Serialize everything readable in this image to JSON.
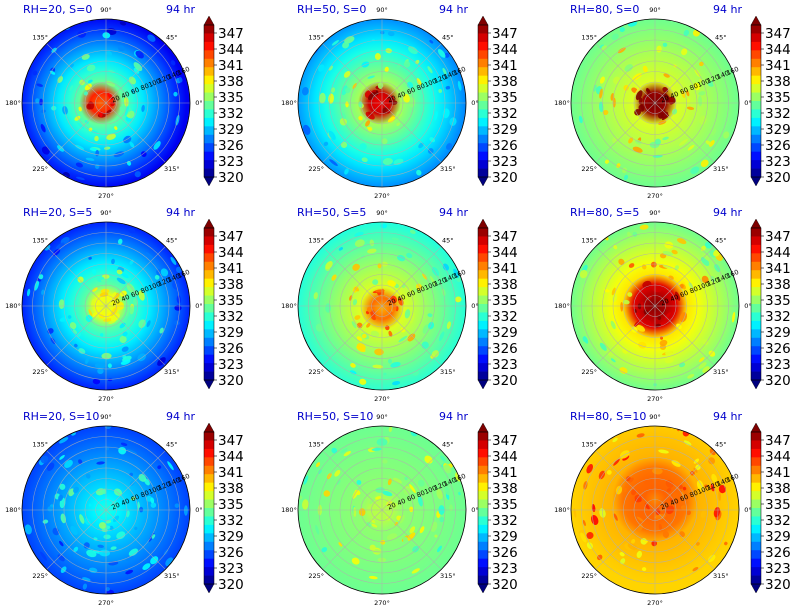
{
  "figure": {
    "time_label": "94 hr",
    "colors": [
      "#00007f",
      "#0000ff",
      "#007fff",
      "#00ffff",
      "#7fff7f",
      "#ffff00",
      "#ff7f00",
      "#ff0000",
      "#7f0000"
    ]
  },
  "chart_data": [
    {
      "type": "heatmap",
      "title": "RH=20, S=0",
      "time": "94 hr",
      "projection": "polar",
      "theta_ticks": [
        "90°",
        "135°",
        "180°",
        "225°",
        "270°",
        "315°",
        "0°",
        "45°"
      ],
      "r_ticks": [
        "20",
        "40",
        "60",
        "80",
        "100",
        "120",
        "140",
        "160"
      ],
      "colorbar_ticks": [
        "347",
        "344",
        "341",
        "338",
        "335",
        "332",
        "329",
        "326",
        "323",
        "320"
      ],
      "colorbar_range": [
        320,
        347
      ],
      "core_value": 345,
      "eye_value": 341,
      "ring_value": 334,
      "edge_value": 323,
      "core_radius": 25,
      "core_offset": [
        -10,
        0
      ]
    },
    {
      "type": "heatmap",
      "title": "RH=50, S=0",
      "time": "94 hr",
      "projection": "polar",
      "theta_ticks": [
        "90°",
        "135°",
        "180°",
        "225°",
        "270°",
        "315°",
        "0°",
        "45°"
      ],
      "r_ticks": [
        "20",
        "40",
        "60",
        "80",
        "100",
        "120",
        "140",
        "160"
      ],
      "colorbar_ticks": [
        "347",
        "344",
        "341",
        "338",
        "335",
        "332",
        "329",
        "326",
        "323",
        "320"
      ],
      "colorbar_range": [
        320,
        347
      ],
      "core_value": 346,
      "eye_value": 344,
      "ring_value": 335,
      "edge_value": 327,
      "core_radius": 32,
      "core_offset": [
        -5,
        0
      ]
    },
    {
      "type": "heatmap",
      "title": "RH=80, S=0",
      "time": "94 hr",
      "projection": "polar",
      "theta_ticks": [
        "90°",
        "135°",
        "180°",
        "225°",
        "270°",
        "315°",
        "0°",
        "45°"
      ],
      "r_ticks": [
        "20",
        "40",
        "60",
        "80",
        "100",
        "120",
        "140",
        "160"
      ],
      "colorbar_ticks": [
        "347",
        "344",
        "341",
        "338",
        "335",
        "332",
        "329",
        "326",
        "323",
        "320"
      ],
      "colorbar_range": [
        320,
        347
      ],
      "core_value": 347,
      "eye_value": 347,
      "ring_value": 336,
      "edge_value": 333,
      "core_radius": 38,
      "core_offset": [
        0,
        0
      ]
    },
    {
      "type": "heatmap",
      "title": "RH=20, S=5",
      "time": "94 hr",
      "projection": "polar",
      "theta_ticks": [
        "90°",
        "135°",
        "180°",
        "225°",
        "270°",
        "315°",
        "0°",
        "45°"
      ],
      "r_ticks": [
        "20",
        "40",
        "60",
        "80",
        "100",
        "120",
        "140",
        "160"
      ],
      "colorbar_ticks": [
        "347",
        "344",
        "341",
        "338",
        "335",
        "332",
        "329",
        "326",
        "323",
        "320"
      ],
      "colorbar_range": [
        320,
        347
      ],
      "core_value": 337,
      "eye_value": 336,
      "ring_value": 333,
      "edge_value": 324,
      "core_radius": 35,
      "core_offset": [
        0,
        0
      ]
    },
    {
      "type": "heatmap",
      "title": "RH=50, S=5",
      "time": "94 hr",
      "projection": "polar",
      "theta_ticks": [
        "90°",
        "135°",
        "180°",
        "225°",
        "270°",
        "315°",
        "0°",
        "45°"
      ],
      "r_ticks": [
        "20",
        "40",
        "60",
        "80",
        "100",
        "120",
        "140",
        "160"
      ],
      "colorbar_ticks": [
        "347",
        "344",
        "341",
        "338",
        "335",
        "332",
        "329",
        "326",
        "323",
        "320"
      ],
      "colorbar_range": [
        320,
        347
      ],
      "core_value": 341,
      "eye_value": 339,
      "ring_value": 336,
      "edge_value": 331,
      "core_radius": 40,
      "core_offset": [
        0,
        5
      ]
    },
    {
      "type": "heatmap",
      "title": "RH=80, S=5",
      "time": "94 hr",
      "projection": "polar",
      "theta_ticks": [
        "90°",
        "135°",
        "180°",
        "225°",
        "270°",
        "315°",
        "0°",
        "45°"
      ],
      "r_ticks": [
        "20",
        "40",
        "60",
        "80",
        "100",
        "120",
        "140",
        "160"
      ],
      "colorbar_ticks": [
        "347",
        "344",
        "341",
        "338",
        "335",
        "332",
        "329",
        "326",
        "323",
        "320"
      ],
      "colorbar_range": [
        320,
        347
      ],
      "core_value": 346,
      "eye_value": 347,
      "ring_value": 338,
      "edge_value": 333,
      "core_radius": 50,
      "core_offset": [
        0,
        0
      ]
    },
    {
      "type": "heatmap",
      "title": "RH=20, S=10",
      "time": "94 hr",
      "projection": "polar",
      "theta_ticks": [
        "90°",
        "135°",
        "180°",
        "225°",
        "270°",
        "315°",
        "0°",
        "45°"
      ],
      "r_ticks": [
        "20",
        "40",
        "60",
        "80",
        "100",
        "120",
        "140",
        "160"
      ],
      "colorbar_ticks": [
        "347",
        "344",
        "341",
        "338",
        "335",
        "332",
        "329",
        "326",
        "323",
        "320"
      ],
      "colorbar_range": [
        320,
        347
      ],
      "core_value": 331,
      "eye_value": 331,
      "ring_value": 330,
      "edge_value": 325,
      "core_radius": 20,
      "core_offset": [
        0,
        0
      ]
    },
    {
      "type": "heatmap",
      "title": "RH=50, S=10",
      "time": "94 hr",
      "projection": "polar",
      "theta_ticks": [
        "90°",
        "135°",
        "180°",
        "225°",
        "270°",
        "315°",
        "0°",
        "45°"
      ],
      "r_ticks": [
        "20",
        "40",
        "60",
        "80",
        "100",
        "120",
        "140",
        "160"
      ],
      "colorbar_ticks": [
        "347",
        "344",
        "341",
        "338",
        "335",
        "332",
        "329",
        "326",
        "323",
        "320"
      ],
      "colorbar_range": [
        320,
        347
      ],
      "core_value": 335,
      "eye_value": 335,
      "ring_value": 334,
      "edge_value": 333,
      "core_radius": 30,
      "core_offset": [
        0,
        0
      ]
    },
    {
      "type": "heatmap",
      "title": "RH=80, S=10",
      "time": "94 hr",
      "projection": "polar",
      "theta_ticks": [
        "90°",
        "135°",
        "180°",
        "225°",
        "270°",
        "315°",
        "0°",
        "45°"
      ],
      "r_ticks": [
        "20",
        "40",
        "60",
        "80",
        "100",
        "120",
        "140",
        "160"
      ],
      "colorbar_ticks": [
        "347",
        "344",
        "341",
        "338",
        "335",
        "332",
        "329",
        "326",
        "323",
        "320"
      ],
      "colorbar_range": [
        320,
        347
      ],
      "core_value": 341,
      "eye_value": 340,
      "ring_value": 339,
      "edge_value": 338,
      "core_radius": 70,
      "core_offset": [
        0,
        -20
      ]
    }
  ]
}
